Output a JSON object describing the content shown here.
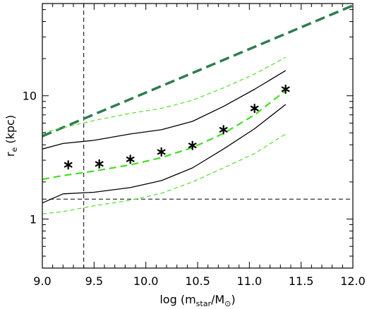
{
  "chart_data": {
    "type": "line",
    "title": "",
    "xlabel": {
      "prefix": "log (m",
      "sub1": "star",
      "mid": "/M",
      "sub2": "⊙",
      "suffix": ")"
    },
    "ylabel": {
      "prefix": "r",
      "sub": "e",
      "suffix": " (kpc)"
    },
    "xlim": [
      9.0,
      12.0
    ],
    "ylim": [
      0.4,
      56
    ],
    "yscale": "log",
    "grid": false,
    "x_ticks": [
      {
        "value": 9.0,
        "label": "9.0"
      },
      {
        "value": 9.5,
        "label": "9.5"
      },
      {
        "value": 10.0,
        "label": "10.0"
      },
      {
        "value": 10.5,
        "label": "10.5"
      },
      {
        "value": 11.0,
        "label": "11.0"
      },
      {
        "value": 11.5,
        "label": "11.5"
      },
      {
        "value": 12.0,
        "label": "12.0"
      }
    ],
    "y_ticks": [
      {
        "value": 1,
        "label": "1"
      },
      {
        "value": 10,
        "label": "10"
      }
    ],
    "vertical_line_x": 9.4,
    "horizontal_line_y": 1.45,
    "series": [
      {
        "style": "thick-dashed",
        "color": "#2e7d4f",
        "x": [
          9.0,
          12.0
        ],
        "y": [
          4.7,
          54
        ]
      },
      {
        "style": "solid",
        "color": "#000000",
        "x": [
          9.0,
          9.2,
          9.5,
          9.85,
          10.15,
          10.45,
          10.75,
          11.05,
          11.35
        ],
        "y": [
          3.7,
          4.1,
          4.35,
          4.9,
          5.3,
          6.2,
          8.2,
          11.3,
          16.0
        ]
      },
      {
        "style": "solid",
        "color": "#000000",
        "x": [
          9.0,
          9.2,
          9.5,
          9.85,
          10.15,
          10.45,
          10.75,
          11.05,
          11.35
        ],
        "y": [
          1.35,
          1.6,
          1.65,
          1.8,
          2.05,
          2.6,
          3.7,
          5.4,
          8.5
        ]
      },
      {
        "style": "dashed",
        "color": "#44dd22",
        "x": [
          9.0,
          9.2,
          9.5,
          9.85,
          10.15,
          10.45,
          10.75,
          11.05,
          11.35
        ],
        "y": [
          2.1,
          2.25,
          2.45,
          2.75,
          3.15,
          3.8,
          4.95,
          7.0,
          11.0
        ]
      },
      {
        "style": "thin-dashed",
        "color": "#44dd22",
        "x": [
          9.0,
          9.2,
          9.5,
          9.85,
          10.15,
          10.45,
          10.75,
          11.05,
          11.35
        ],
        "y": [
          5.0,
          5.5,
          6.3,
          7.2,
          7.9,
          9.2,
          11.6,
          15.0,
          20.5
        ]
      },
      {
        "style": "thin-dashed",
        "color": "#44dd22",
        "x": [
          9.0,
          9.2,
          9.5,
          9.85,
          10.15,
          10.45,
          10.75,
          11.05,
          11.35
        ],
        "y": [
          1.1,
          1.15,
          1.28,
          1.42,
          1.62,
          2.0,
          2.6,
          3.4,
          4.9
        ]
      },
      {
        "style": "stars",
        "color": "#000000",
        "x": [
          9.25,
          9.55,
          9.85,
          10.15,
          10.45,
          10.75,
          11.05,
          11.35
        ],
        "y": [
          2.75,
          2.8,
          3.05,
          3.5,
          3.95,
          5.3,
          7.9,
          11.3
        ]
      }
    ]
  }
}
